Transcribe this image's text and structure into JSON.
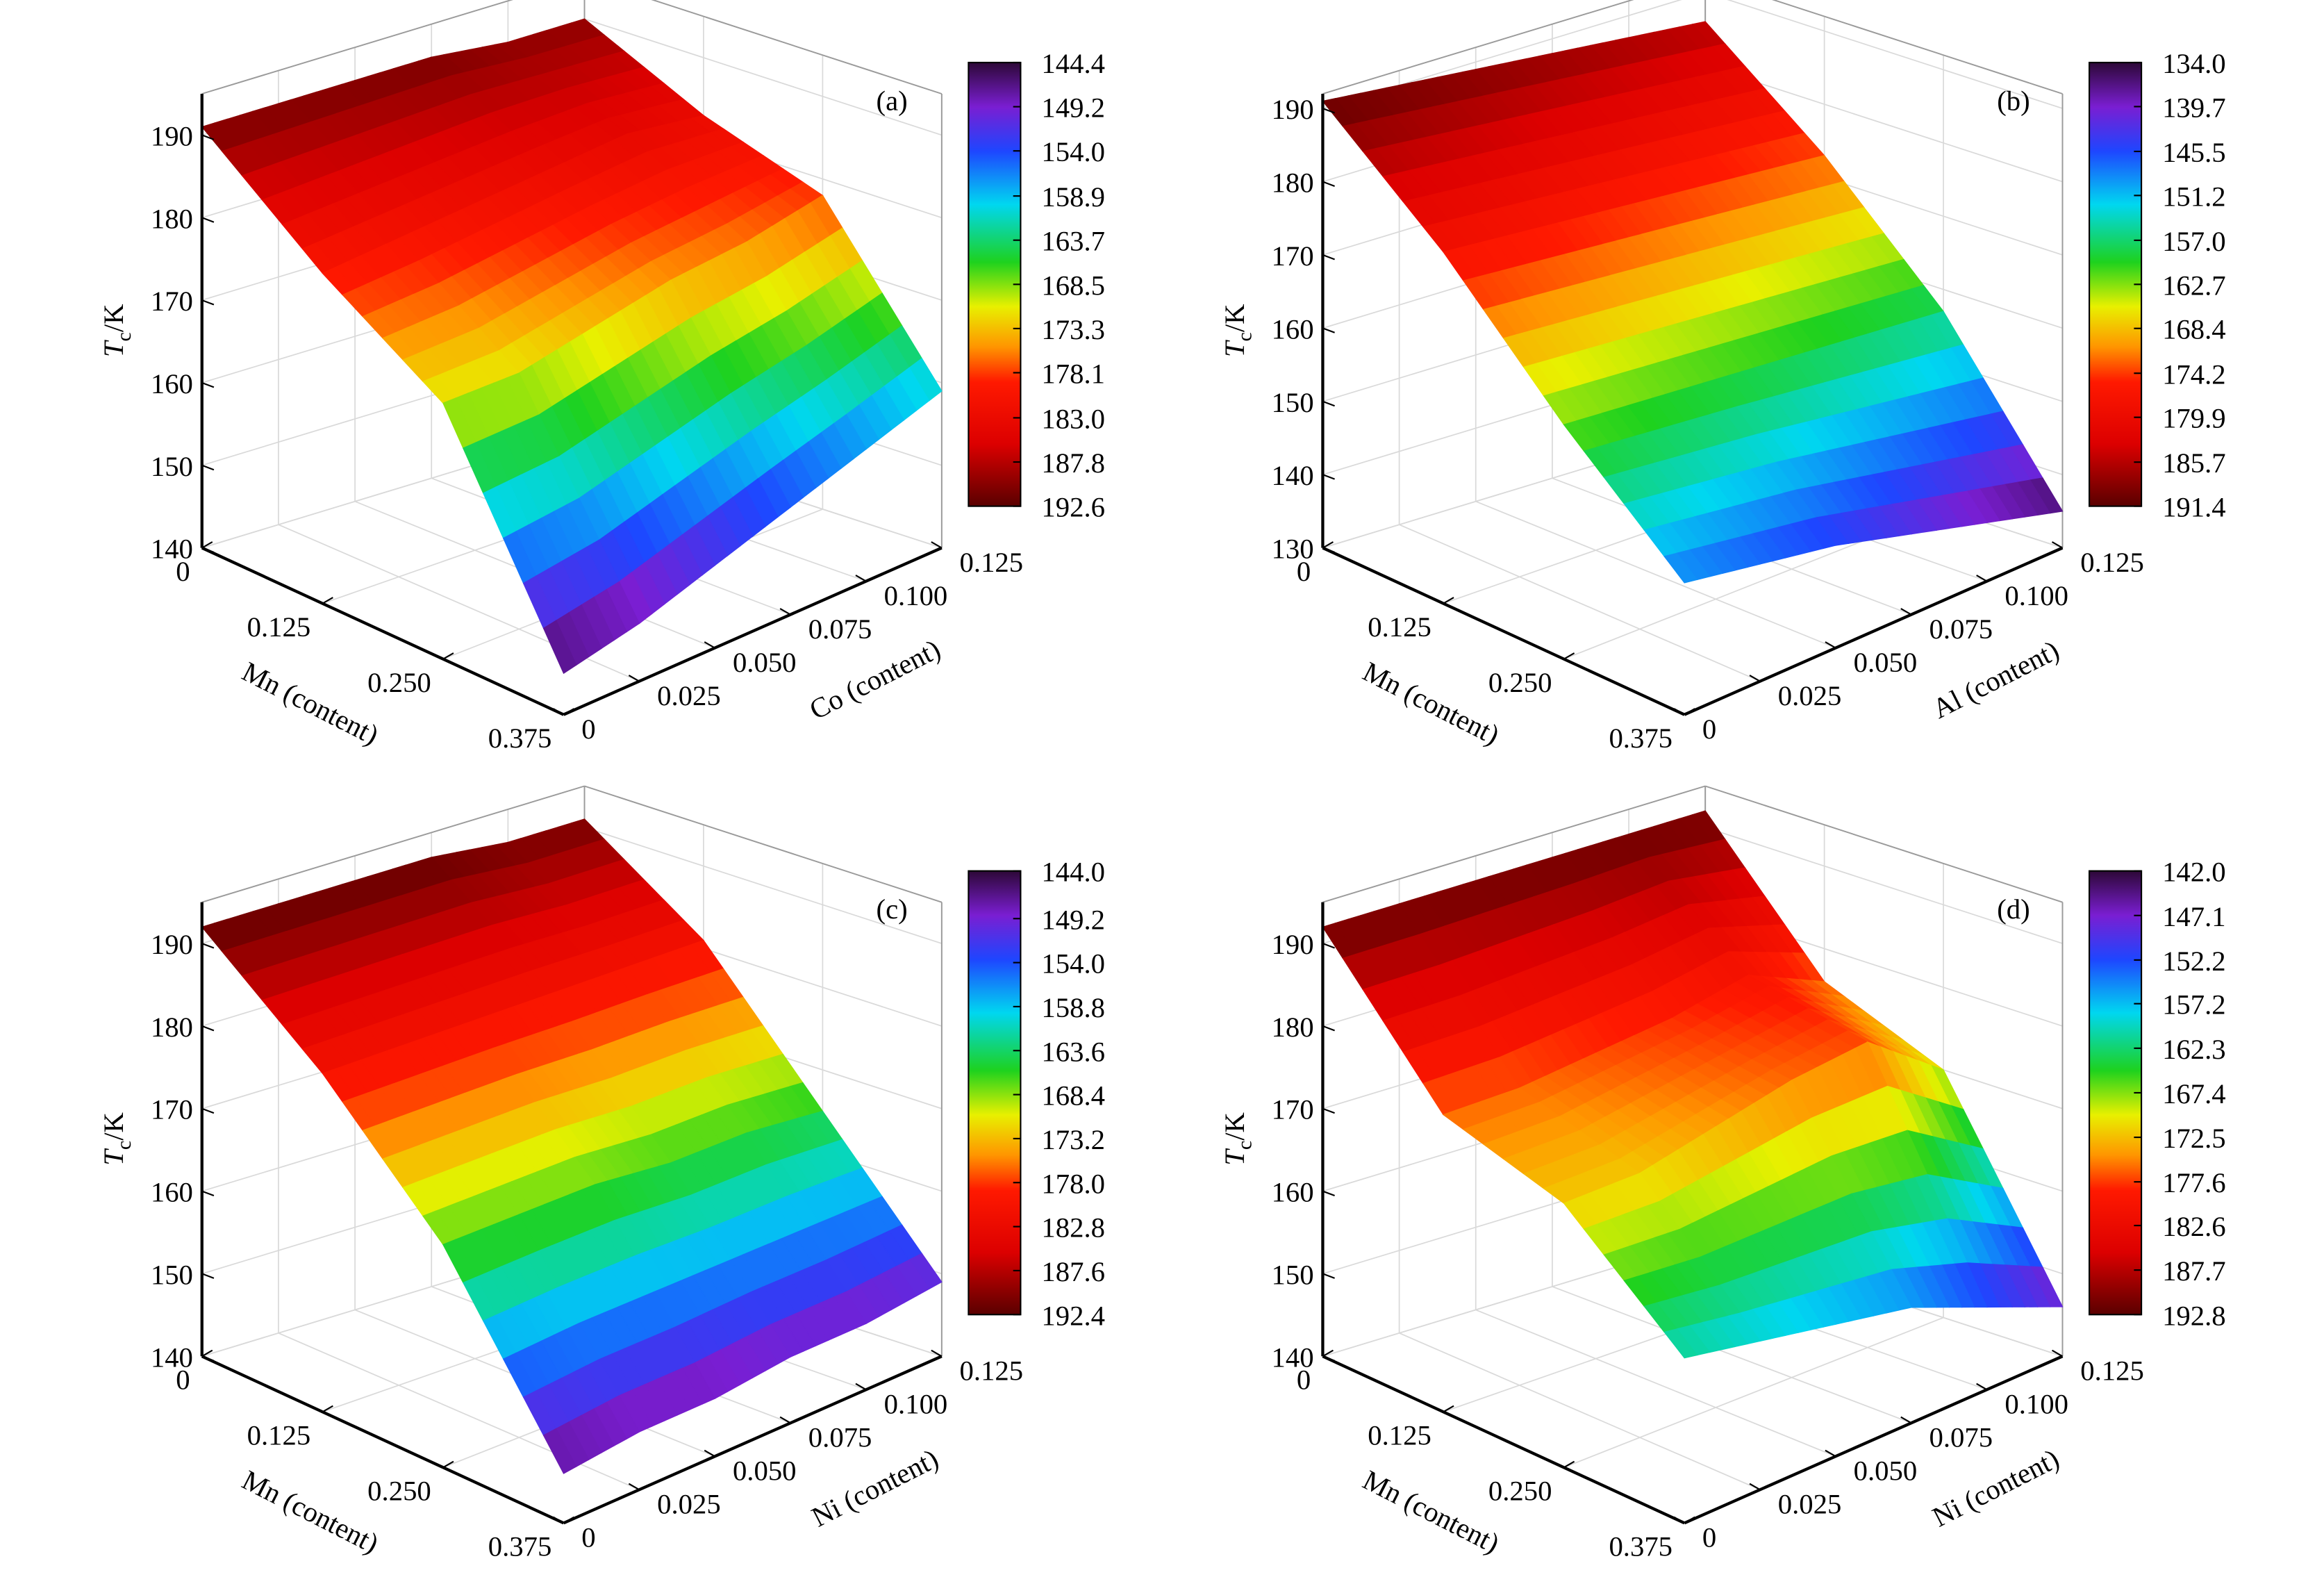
{
  "chart_data": [
    {
      "type": "surface",
      "label": "(a)",
      "zlabel_symbol": "T",
      "zlabel_sub": "c",
      "zlabel_unit": "/K",
      "xlabel": "Mn (content)",
      "ylabel": "Co (content)",
      "x": [
        0,
        0.125,
        0.25,
        0.375
      ],
      "y": [
        0,
        0.025,
        0.05,
        0.075,
        0.1,
        0.125
      ],
      "values": [
        [
          191,
          191,
          191,
          191,
          190,
          190
        ],
        [
          180,
          181,
          182,
          183,
          184,
          183
        ],
        [
          171,
          171,
          173,
          175,
          176,
          178
        ],
        [
          145,
          147,
          150,
          153,
          156,
          159
        ]
      ],
      "xlim": [
        0,
        0.375
      ],
      "xticks": [
        0,
        0.125,
        {
          "value": 0.25,
          "label": "0.250"
        },
        0.375
      ],
      "ylim": [
        0,
        0.125
      ],
      "yticks": [
        0,
        0.025,
        {
          "value": 0.05,
          "label": "0.050"
        },
        0.075,
        {
          "value": 0.1,
          "label": "0.100"
        },
        0.125
      ],
      "zlim": [
        140,
        195
      ],
      "zticks": [
        140,
        150,
        160,
        170,
        180,
        190
      ],
      "clim": [
        144.4,
        192.6
      ],
      "cticks": [
        144.4,
        149.2,
        {
          "value": 154.0,
          "label": "154.0"
        },
        158.9,
        163.7,
        168.5,
        173.3,
        178.1,
        {
          "value": 183.0,
          "label": "183.0"
        },
        187.8,
        192.6
      ],
      "grid": true
    },
    {
      "type": "surface",
      "label": "(b)",
      "zlabel_symbol": "T",
      "zlabel_sub": "c",
      "zlabel_unit": "/K",
      "xlabel": "Mn (content)",
      "ylabel": "Al (content)",
      "x": [
        0,
        0.125,
        0.25,
        0.375
      ],
      "y": [
        0,
        0.025,
        0.05,
        0.075,
        0.1,
        0.125
      ],
      "values": [
        [
          191,
          190,
          189,
          188,
          187,
          186
        ],
        [
          178,
          177,
          176,
          175,
          174,
          173
        ],
        [
          162,
          161,
          160,
          159,
          158,
          157
        ],
        [
          148,
          146,
          144,
          141,
          138,
          135
        ]
      ],
      "xlim": [
        0,
        0.375
      ],
      "xticks": [
        0,
        0.125,
        {
          "value": 0.25,
          "label": "0.250"
        },
        0.375
      ],
      "ylim": [
        0,
        0.125
      ],
      "yticks": [
        0,
        0.025,
        {
          "value": 0.05,
          "label": "0.050"
        },
        0.075,
        {
          "value": 0.1,
          "label": "0.100"
        },
        0.125
      ],
      "zlim": [
        130,
        192
      ],
      "zticks": [
        130,
        140,
        150,
        160,
        170,
        180,
        190
      ],
      "clim": [
        134.0,
        191.4
      ],
      "cticks": [
        {
          "value": 134.0,
          "label": "134.0"
        },
        139.7,
        145.5,
        151.2,
        {
          "value": 157.0,
          "label": "157.0"
        },
        162.7,
        168.4,
        174.2,
        179.9,
        185.7,
        191.4
      ],
      "grid": true
    },
    {
      "type": "surface",
      "label": "(c)",
      "zlabel_symbol": "T",
      "zlabel_sub": "c",
      "zlabel_unit": "/K",
      "xlabel": "Mn (content)",
      "ylabel": "Ni (content)",
      "x": [
        0,
        0.125,
        0.25,
        0.375
      ],
      "y": [
        0,
        0.025,
        0.05,
        0.075,
        0.1,
        0.125
      ],
      "values": [
        [
          192,
          192,
          192,
          192,
          191,
          191
        ],
        [
          181,
          181,
          181,
          181,
          181,
          181
        ],
        [
          167,
          167,
          167,
          166,
          166,
          165
        ],
        [
          146,
          147,
          147,
          148,
          148,
          149
        ]
      ],
      "xlim": [
        0,
        0.375
      ],
      "xticks": [
        0,
        0.125,
        {
          "value": 0.25,
          "label": "0.250"
        },
        0.375
      ],
      "ylim": [
        0,
        0.125
      ],
      "yticks": [
        0,
        0.025,
        {
          "value": 0.05,
          "label": "0.050"
        },
        0.075,
        {
          "value": 0.1,
          "label": "0.100"
        },
        0.125
      ],
      "zlim": [
        140,
        195
      ],
      "zticks": [
        140,
        150,
        160,
        170,
        180,
        190
      ],
      "clim": [
        144.0,
        192.4
      ],
      "cticks": [
        {
          "value": 144.0,
          "label": "144.0"
        },
        149.2,
        {
          "value": 154.0,
          "label": "154.0"
        },
        158.8,
        163.6,
        168.4,
        173.2,
        {
          "value": 178.0,
          "label": "178.0"
        },
        182.8,
        187.6,
        192.4
      ],
      "grid": true
    },
    {
      "type": "surface",
      "label": "(d)",
      "zlabel_symbol": "T",
      "zlabel_sub": "c",
      "zlabel_unit": "/K",
      "xlabel": "Mn (content)",
      "ylabel": "Ni (content)",
      "x": [
        0,
        0.125,
        0.25,
        0.375
      ],
      "y": [
        0,
        0.025,
        0.05,
        0.075,
        0.1,
        0.125
      ],
      "values": [
        [
          192,
          192,
          192,
          192,
          192,
          192
        ],
        [
          176,
          176,
          177,
          178,
          180,
          176
        ],
        [
          172,
          172,
          174,
          176,
          177,
          170
        ],
        [
          160,
          158,
          156,
          154,
          150,
          146
        ]
      ],
      "xlim": [
        0,
        0.375
      ],
      "xticks": [
        0,
        0.125,
        {
          "value": 0.25,
          "label": "0.250"
        },
        0.375
      ],
      "ylim": [
        0,
        0.125
      ],
      "yticks": [
        0,
        0.025,
        {
          "value": 0.05,
          "label": "0.050"
        },
        0.075,
        {
          "value": 0.1,
          "label": "0.100"
        },
        0.125
      ],
      "zlim": [
        140,
        195
      ],
      "zticks": [
        140,
        150,
        160,
        170,
        180,
        190
      ],
      "clim": [
        142.0,
        192.8
      ],
      "cticks": [
        {
          "value": 142.0,
          "label": "142.0"
        },
        147.1,
        152.2,
        157.2,
        162.3,
        167.4,
        172.5,
        177.6,
        182.6,
        187.7,
        192.8
      ],
      "grid": true
    }
  ]
}
